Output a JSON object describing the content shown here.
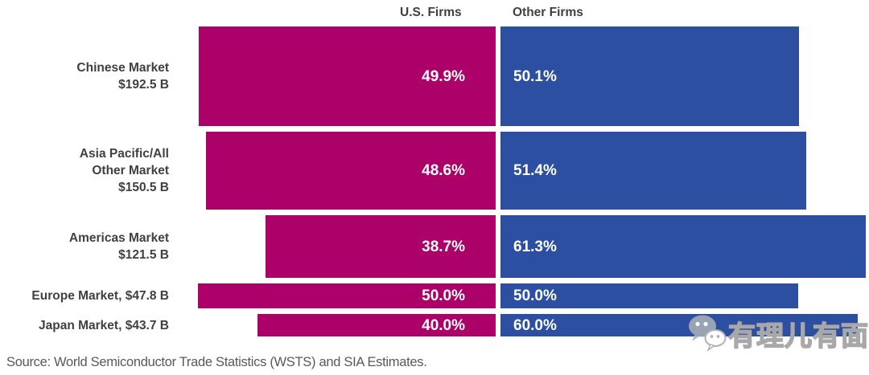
{
  "header": {
    "us_label": "U.S. Firms",
    "other_label": "Other Firms"
  },
  "chart_data": {
    "type": "bar",
    "subtype": "diverging-stacked-variable-height",
    "description": "Semiconductor market share split between U.S. firms and other firms by regional market; bar height proportional to market size",
    "categories": [
      "Chinese Market",
      "Asia Pacific/All Other Market",
      "Americas Market",
      "Europe Market",
      "Japan Market"
    ],
    "category_label_lines": [
      [
        "Chinese Market",
        "$192.5 B"
      ],
      [
        "Asia Pacific/All",
        "Other Market",
        "$150.5 B"
      ],
      [
        "Americas Market",
        "$121.5 B"
      ],
      [
        "Europe Market, $47.8 B"
      ],
      [
        "Japan Market, $43.7 B"
      ]
    ],
    "market_size_billions": [
      192.5,
      150.5,
      121.5,
      47.8,
      43.7
    ],
    "series": [
      {
        "name": "U.S. Firms",
        "values": [
          49.9,
          48.6,
          38.7,
          50.0,
          40.0
        ],
        "color": "#AC0168"
      },
      {
        "name": "Other Firms",
        "values": [
          50.1,
          51.4,
          61.3,
          50.0,
          60.0
        ],
        "color": "#2C4FA1"
      }
    ],
    "value_format": "percent-one-decimal",
    "legend_position": "top-center",
    "grid": false
  },
  "source": "Source: World Semiconductor Trade Statistics (WSTS) and SIA Estimates.",
  "watermark": {
    "text": "有理儿有面",
    "icon": "wechat-icon"
  },
  "colors": {
    "us_bar": "#AC0168",
    "other_bar": "#2C4FA1",
    "header_text": "#404040",
    "category_text": "#404040",
    "value_text": "#FFFFFF",
    "source_text": "#595959",
    "background": "#FFFFFF"
  }
}
